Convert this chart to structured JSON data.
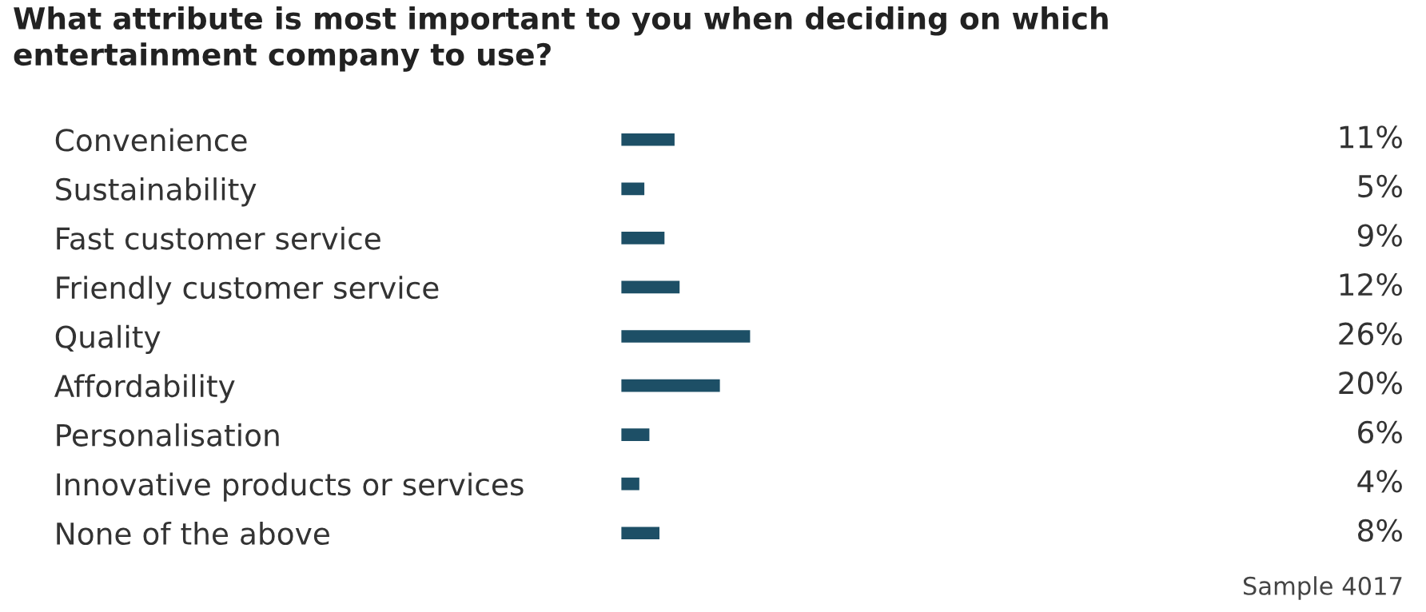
{
  "chart_data": {
    "type": "bar",
    "orientation": "horizontal",
    "title": "What attribute is most important to you when deciding on which\nentertainment company to use?",
    "categories": [
      "Convenience",
      "Sustainability",
      "Fast customer service",
      "Friendly customer service",
      "Quality",
      "Affordability",
      "Personalisation",
      "Innovative products or services",
      "None of the above"
    ],
    "values": [
      11,
      5,
      9,
      12,
      26,
      20,
      6,
      4,
      8
    ],
    "value_labels": [
      "11%",
      "5%",
      "9%",
      "12%",
      "26%",
      "20%",
      "6%",
      "4%",
      "8%"
    ],
    "color": "#1d4f66",
    "tick_labels": "y",
    "grid": false,
    "legend": false,
    "annotations": [
      "Sample 4017"
    ]
  }
}
